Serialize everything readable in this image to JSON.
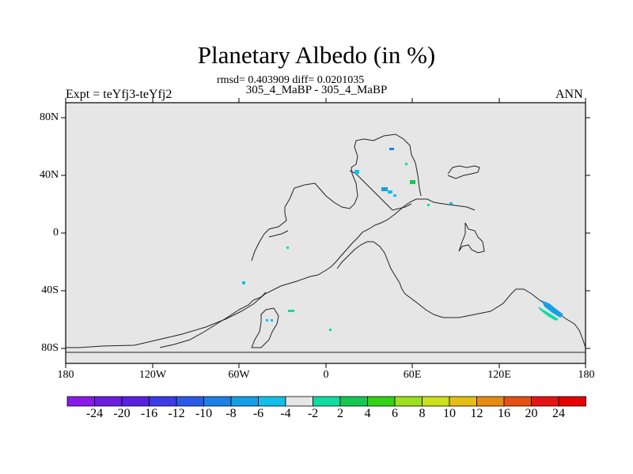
{
  "title": "Planetary Albedo (in %)",
  "stats": "rmsd= 0.403909 diff= 0.0201035",
  "subtitle": "305_4_MaBP - 305_4_MaBP",
  "left_label": "Expt = teYfj3-teYfj2",
  "right_label": "ANN",
  "axes": {
    "y_ticks": [
      "80N",
      "40N",
      "0",
      "40S",
      "80S"
    ],
    "x_ticks": [
      "180",
      "120W",
      "60W",
      "0",
      "60E",
      "120E",
      "180"
    ]
  },
  "colorbar": {
    "labels": [
      "-24",
      "-20",
      "-16",
      "-12",
      "-10",
      "-8",
      "-6",
      "-4",
      "-2",
      "2",
      "4",
      "6",
      "8",
      "10",
      "12",
      "16",
      "20",
      "24"
    ],
    "colors": [
      "#8a1ae8",
      "#6a1ee0",
      "#5a22e0",
      "#3c3ce6",
      "#2a5ae8",
      "#1e80e6",
      "#14a0e6",
      "#10c0e8",
      "#e6e6e6",
      "#10dca0",
      "#14c850",
      "#32d214",
      "#9ae01e",
      "#cce01e",
      "#e6be14",
      "#e68c14",
      "#e65014",
      "#e61414",
      "#e60000"
    ]
  }
}
